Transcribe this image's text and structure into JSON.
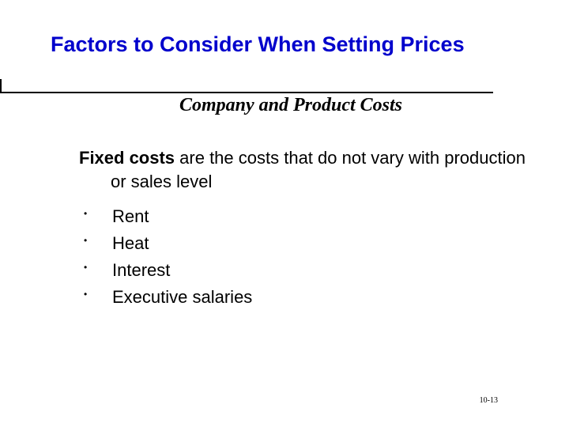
{
  "title": "Factors to Consider When Setting Prices",
  "subtitle": "Company and Product Costs",
  "definition": {
    "term": "Fixed costs",
    "rest": " are the costs that do not vary with production or sales level"
  },
  "bullets": [
    "Rent",
    "Heat",
    "Interest",
    "Executive salaries"
  ],
  "page_number": "10-13",
  "colors": {
    "title": "#0000cc",
    "text": "#000000",
    "rule": "#000000",
    "background": "#ffffff"
  },
  "typography": {
    "title_fontsize": 27,
    "subtitle_fontsize": 24,
    "body_fontsize": 22,
    "pagenum_fontsize": 10
  }
}
